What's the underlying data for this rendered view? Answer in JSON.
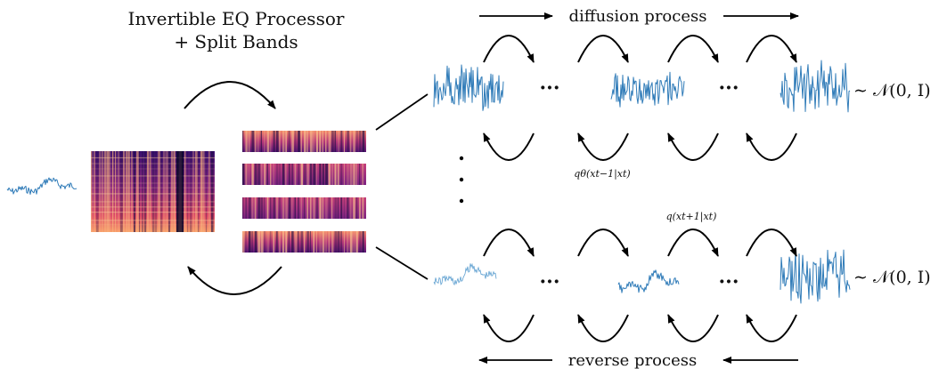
{
  "title": {
    "line1": "Invertible EQ Processor",
    "line2": "+ Split Bands"
  },
  "labels": {
    "diffusion": "diffusion process",
    "reverse": "reverse process",
    "q_reverse": "qθ(xt−1|xt)",
    "q_forward": "q(xt+1|xt)",
    "normal_top": "∼ 𝒩(0, I)",
    "normal_bottom": "∼ 𝒩(0, I)",
    "ellipsis_top_1": "···",
    "ellipsis_top_2": "···",
    "ellipsis_bottom_1": "···",
    "ellipsis_bottom_2": "···"
  },
  "colors": {
    "waveform": "#2f7bb8",
    "spectrogram_dark": "#1b0c41",
    "spectrogram_mid": "#8c2981",
    "spectrogram_bright": "#f7a26a",
    "arrow": "#000000"
  }
}
